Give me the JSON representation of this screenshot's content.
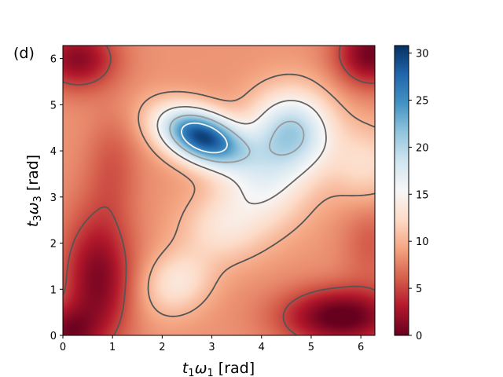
{
  "panel_label": "(d)",
  "chart_data": {
    "type": "heatmap",
    "title": "",
    "xlabel_parts": {
      "v1": "t",
      "s1": "1",
      "v2": "ω",
      "s2": "1",
      "unit": " [rad]"
    },
    "ylabel_parts": {
      "v1": "t",
      "s1": "3",
      "v2": "ω",
      "s2": "3",
      "unit": " [rad]"
    },
    "xlim": [
      0,
      6.283
    ],
    "ylim": [
      0,
      6.283
    ],
    "x_ticks": [
      0,
      1,
      2,
      3,
      4,
      5,
      6
    ],
    "y_ticks": [
      0,
      1,
      2,
      3,
      4,
      5,
      6
    ],
    "colorbar": {
      "range": [
        0,
        30.8
      ],
      "ticks": [
        0,
        5,
        10,
        15,
        20,
        25,
        30
      ],
      "colormap": "RdBu",
      "colors": [
        "#67001f",
        "#b2182b",
        "#d6604d",
        "#f4a582",
        "#fddbc7",
        "#f7f7f7",
        "#d1e5f0",
        "#92c5de",
        "#4393c3",
        "#2166ac",
        "#053061"
      ]
    },
    "contour_levels": [
      5,
      10,
      15,
      20,
      25
    ],
    "features": [
      {
        "kind": "maximum",
        "x": 2.8,
        "y": 4.3,
        "value": 30.8
      },
      {
        "kind": "lobe",
        "x": 4.6,
        "y": 4.4,
        "value": 21
      },
      {
        "kind": "local-maximum",
        "x": 2.2,
        "y": 1.1,
        "value": 12
      },
      {
        "kind": "minimum",
        "x": 0.7,
        "y": 1.2,
        "value": 1
      },
      {
        "kind": "minimum",
        "x": 5.6,
        "y": 0.4,
        "value": 0.5
      },
      {
        "kind": "minimum",
        "x": 0.2,
        "y": 0.1,
        "value": 0
      }
    ]
  }
}
